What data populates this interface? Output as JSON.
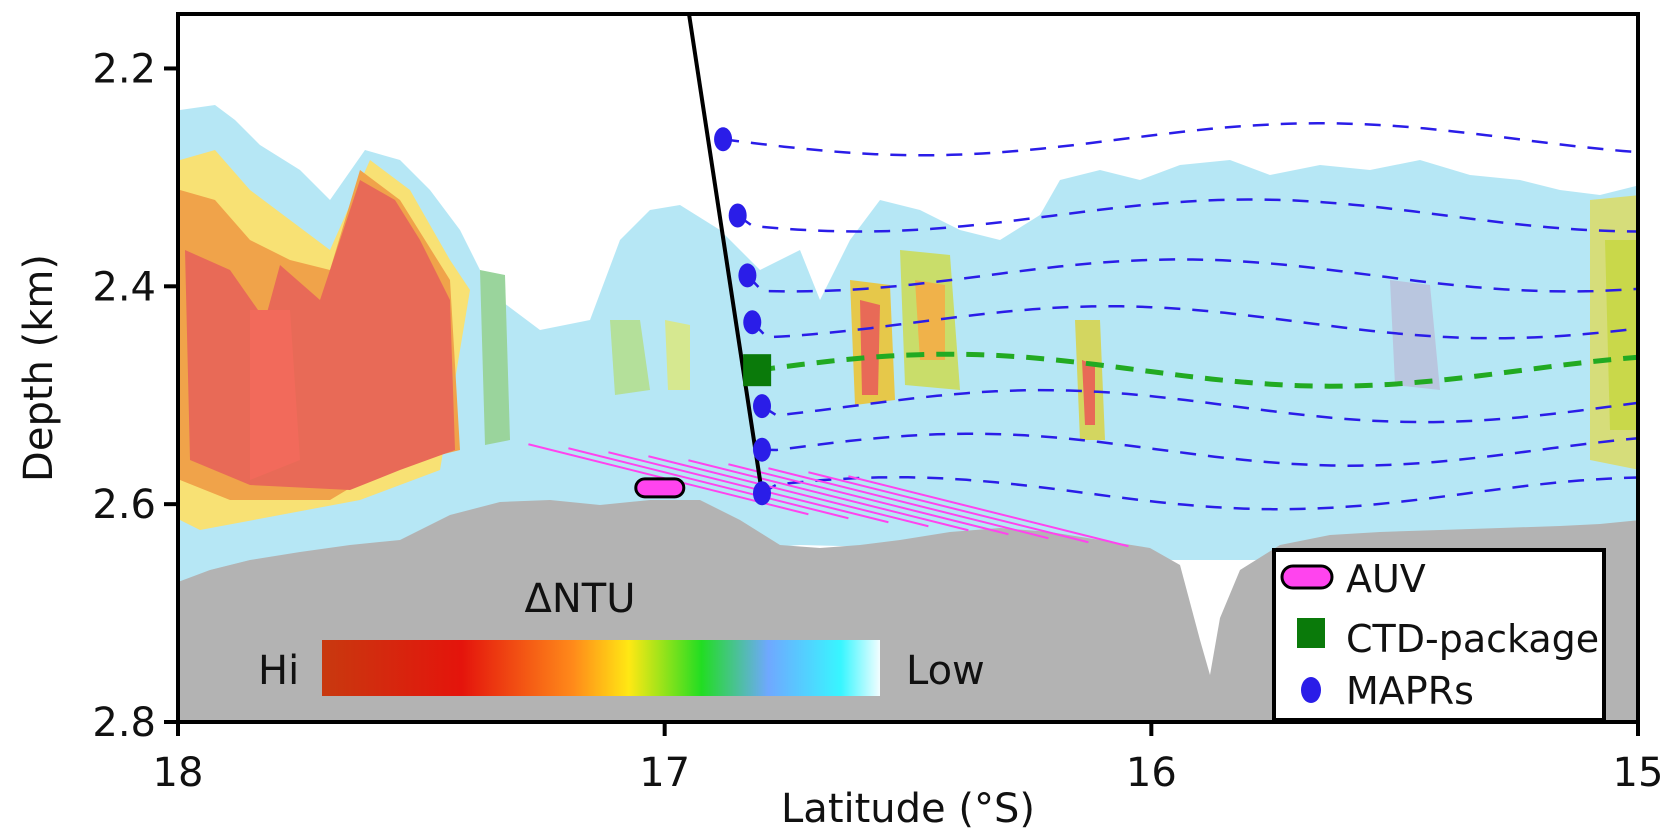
{
  "chart_data": {
    "type": "scatter",
    "xlabel": "Latitude (°S)",
    "ylabel": "Depth (km)",
    "xlim": [
      18,
      15
    ],
    "ylim": [
      2.15,
      2.8
    ],
    "x_ticks": [
      "18",
      "17",
      "16",
      "15"
    ],
    "y_ticks": [
      "2.2",
      "2.4",
      "2.6",
      "2.8"
    ],
    "colorbar": {
      "title": "ΔNTU",
      "low_label": "Low",
      "high_label": "Hi"
    },
    "legend": {
      "placement": "bottom-right",
      "items": [
        {
          "label": "AUV",
          "marker": "rounded-rect",
          "color": "#ff44ee"
        },
        {
          "label": "CTD-package",
          "marker": "square",
          "color": "#0a7a0a"
        },
        {
          "label": "MAPRs",
          "marker": "circle",
          "color": "#2a1de8"
        }
      ]
    },
    "series": [
      {
        "name": "MAPRs",
        "x": [
          16.88,
          16.85,
          16.83,
          16.82,
          16.8,
          16.8,
          16.8
        ],
        "y": [
          2.265,
          2.335,
          2.39,
          2.433,
          2.51,
          2.55,
          2.59
        ]
      },
      {
        "name": "CTD-package",
        "x": [
          16.81
        ],
        "y": [
          2.477
        ]
      },
      {
        "name": "AUV",
        "x": [
          17.01
        ],
        "y": [
          2.585
        ]
      }
    ],
    "ctd_cable": {
      "x": [
        16.95,
        16.8
      ],
      "y": [
        2.15,
        2.59
      ]
    },
    "colors": {
      "seafloor": "#b3b3b3",
      "mapr_track": "#2a1de8",
      "ctd_track": "#22aa22",
      "auv_track": "#ff44ee"
    }
  }
}
